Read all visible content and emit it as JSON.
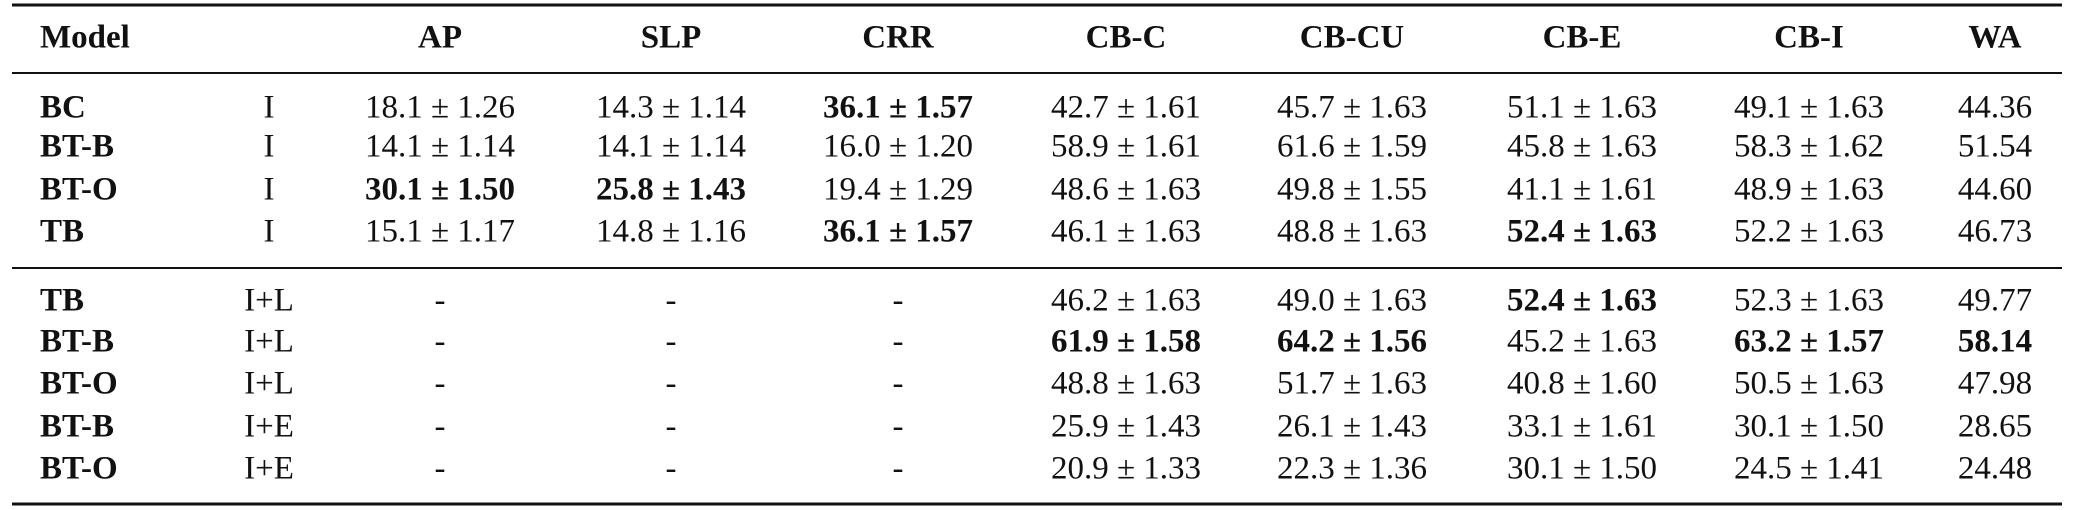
{
  "table": {
    "header": [
      "Model",
      "AP",
      "SLP",
      "CRR",
      "CB-C",
      "CB-CU",
      "CB-E",
      "CB-I",
      "WA"
    ],
    "groups": [
      {
        "rows": [
          {
            "cells": [
              "BC",
              "I",
              "18.1 ± 1.26",
              "14.3 ± 1.14",
              "36.1 ± 1.57",
              "42.7 ± 1.61",
              "45.7 ± 1.63",
              "51.1 ± 1.63",
              "49.1 ± 1.63",
              "44.36"
            ],
            "bold": [
              4
            ]
          },
          {
            "cells": [
              "BT-B",
              "I",
              "14.1 ± 1.14",
              "14.1 ± 1.14",
              "16.0 ± 1.20",
              "58.9 ± 1.61",
              "61.6 ± 1.59",
              "45.8 ± 1.63",
              "58.3 ± 1.62",
              "51.54"
            ],
            "bold": []
          },
          {
            "cells": [
              "BT-O",
              "I",
              "30.1 ± 1.50",
              "25.8 ± 1.43",
              "19.4 ± 1.29",
              "48.6 ± 1.63",
              "49.8 ± 1.55",
              "41.1 ± 1.61",
              "48.9 ± 1.63",
              "44.60"
            ],
            "bold": [
              2,
              3
            ]
          },
          {
            "cells": [
              "TB",
              "I",
              "15.1 ± 1.17",
              "14.8 ± 1.16",
              "36.1 ± 1.57",
              "46.1 ± 1.63",
              "48.8 ± 1.63",
              "52.4 ± 1.63",
              "52.2 ± 1.63",
              "46.73"
            ],
            "bold": [
              4,
              7
            ]
          }
        ]
      },
      {
        "rows": [
          {
            "cells": [
              "TB",
              "I+L",
              "-",
              "-",
              "-",
              "46.2 ± 1.63",
              "49.0 ± 1.63",
              "52.4 ± 1.63",
              "52.3 ± 1.63",
              "49.77"
            ],
            "bold": [
              7
            ]
          },
          {
            "cells": [
              "BT-B",
              "I+L",
              "-",
              "-",
              "-",
              "61.9 ± 1.58",
              "64.2 ± 1.56",
              "45.2 ± 1.63",
              "63.2 ± 1.57",
              "58.14"
            ],
            "bold": [
              5,
              6,
              8,
              9
            ]
          },
          {
            "cells": [
              "BT-O",
              "I+L",
              "-",
              "-",
              "-",
              "48.8 ± 1.63",
              "51.7 ± 1.63",
              "40.8 ± 1.60",
              "50.5 ± 1.63",
              "47.98"
            ],
            "bold": []
          },
          {
            "cells": [
              "BT-B",
              "I+E",
              "-",
              "-",
              "-",
              "25.9 ± 1.43",
              "26.1 ± 1.43",
              "33.1 ± 1.61",
              "30.1 ± 1.50",
              "28.65"
            ],
            "bold": []
          },
          {
            "cells": [
              "BT-O",
              "I+E",
              "-",
              "-",
              "-",
              "20.9 ± 1.33",
              "22.3 ± 1.36",
              "30.1 ± 1.50",
              "24.5 ± 1.41",
              "24.48"
            ],
            "bold": []
          }
        ]
      }
    ]
  }
}
